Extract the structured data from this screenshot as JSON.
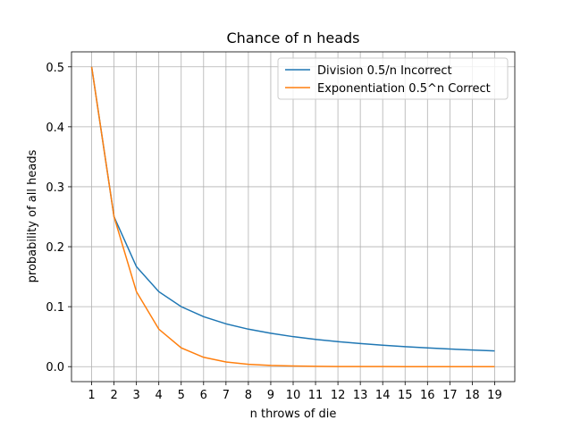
{
  "chart_data": {
    "type": "line",
    "title": "Chance of n heads",
    "x_label": "n throws of die",
    "y_label": "probability of all heads",
    "x": [
      1,
      2,
      3,
      4,
      5,
      6,
      7,
      8,
      9,
      10,
      11,
      12,
      13,
      14,
      15,
      16,
      17,
      18,
      19
    ],
    "series": [
      {
        "name": "Division 0.5/n Incorrect",
        "color": "#1f77b4",
        "values": [
          0.5,
          0.25,
          0.1667,
          0.125,
          0.1,
          0.0833,
          0.0714,
          0.0625,
          0.0556,
          0.05,
          0.0455,
          0.0417,
          0.0385,
          0.0357,
          0.0333,
          0.0313,
          0.0294,
          0.0278,
          0.0263
        ]
      },
      {
        "name": "Exponentiation 0.5^n Correct",
        "color": "#ff7f0e",
        "values": [
          0.5,
          0.25,
          0.125,
          0.0625,
          0.0313,
          0.0156,
          0.0078,
          0.0039,
          0.002,
          0.001,
          0.0005,
          0.0002,
          0.0001,
          0.0001,
          0,
          0,
          0,
          0,
          0
        ]
      }
    ],
    "xlim": [
      0.1,
      19.9
    ],
    "ylim": [
      -0.025,
      0.525
    ],
    "xticks": [
      1,
      2,
      3,
      4,
      5,
      6,
      7,
      8,
      9,
      10,
      11,
      12,
      13,
      14,
      15,
      16,
      17,
      18,
      19
    ],
    "yticks": [
      {
        "value": 0,
        "label": "0.0"
      },
      0.1,
      0.2,
      0.3,
      0.4,
      0.5
    ],
    "grid": true,
    "legend": "upper right"
  }
}
